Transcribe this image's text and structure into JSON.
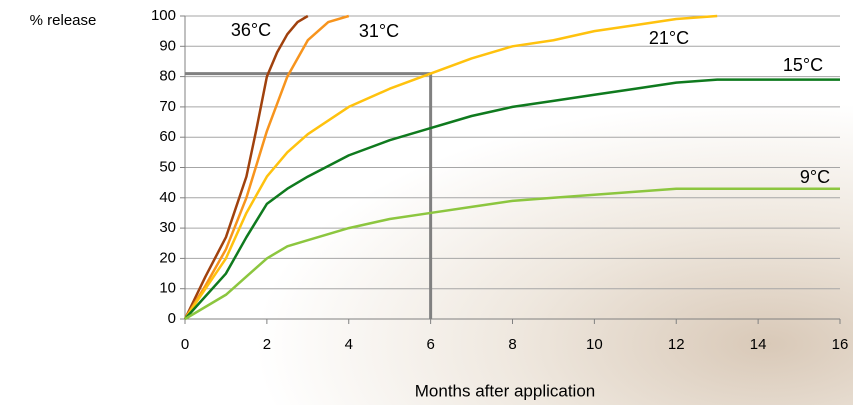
{
  "chart_data": {
    "type": "line",
    "ylabel": "% release",
    "xlabel": "Months after application",
    "xlim": [
      0,
      16
    ],
    "xticks": [
      0,
      2,
      4,
      6,
      8,
      10,
      12,
      14,
      16
    ],
    "ylim": [
      0,
      100
    ],
    "yticks": [
      0,
      10,
      20,
      30,
      40,
      50,
      60,
      70,
      80,
      90,
      100
    ],
    "grid": true,
    "reference": {
      "x": 6,
      "y": 81,
      "color": "#808080"
    },
    "series": [
      {
        "name": "36°C",
        "color": "#a0410d",
        "x": [
          0,
          0.5,
          1,
          1.5,
          1.75,
          2,
          2.25,
          2.5,
          2.75,
          3
        ],
        "values": [
          0,
          14,
          27,
          47,
          63,
          80,
          88,
          94,
          98,
          100
        ]
      },
      {
        "name": "31°C",
        "color": "#f7941d",
        "x": [
          0,
          0.5,
          1,
          1.5,
          2,
          2.5,
          3,
          3.5,
          4
        ],
        "values": [
          0,
          11,
          23,
          40,
          62,
          80,
          92,
          98,
          100
        ]
      },
      {
        "name": "21°C",
        "color": "#ffc20e",
        "x": [
          0,
          0.5,
          1,
          1.5,
          2,
          2.5,
          3,
          4,
          5,
          6,
          7,
          8,
          9,
          10,
          11,
          12,
          13
        ],
        "values": [
          0,
          10,
          20,
          35,
          47,
          55,
          61,
          70,
          76,
          81,
          86,
          90,
          92,
          95,
          97,
          99,
          100
        ]
      },
      {
        "name": "15°C",
        "color": "#0f7a1e",
        "x": [
          0,
          1,
          1.5,
          2,
          2.5,
          3,
          4,
          5,
          6,
          7,
          8,
          9,
          10,
          11,
          12,
          13,
          14,
          15,
          16
        ],
        "values": [
          0,
          15,
          27,
          38,
          43,
          47,
          54,
          59,
          63,
          67,
          70,
          72,
          74,
          76,
          78,
          79,
          79,
          79,
          79
        ]
      },
      {
        "name": "9°C",
        "color": "#8cc63f",
        "x": [
          0,
          1,
          1.5,
          2,
          2.5,
          3,
          4,
          5,
          6,
          7,
          8,
          9,
          10,
          11,
          12,
          13,
          14,
          15,
          16
        ],
        "values": [
          0,
          8,
          14,
          20,
          24,
          26,
          30,
          33,
          35,
          37,
          39,
          40,
          41,
          42,
          43,
          43,
          43,
          43,
          43
        ]
      }
    ]
  }
}
